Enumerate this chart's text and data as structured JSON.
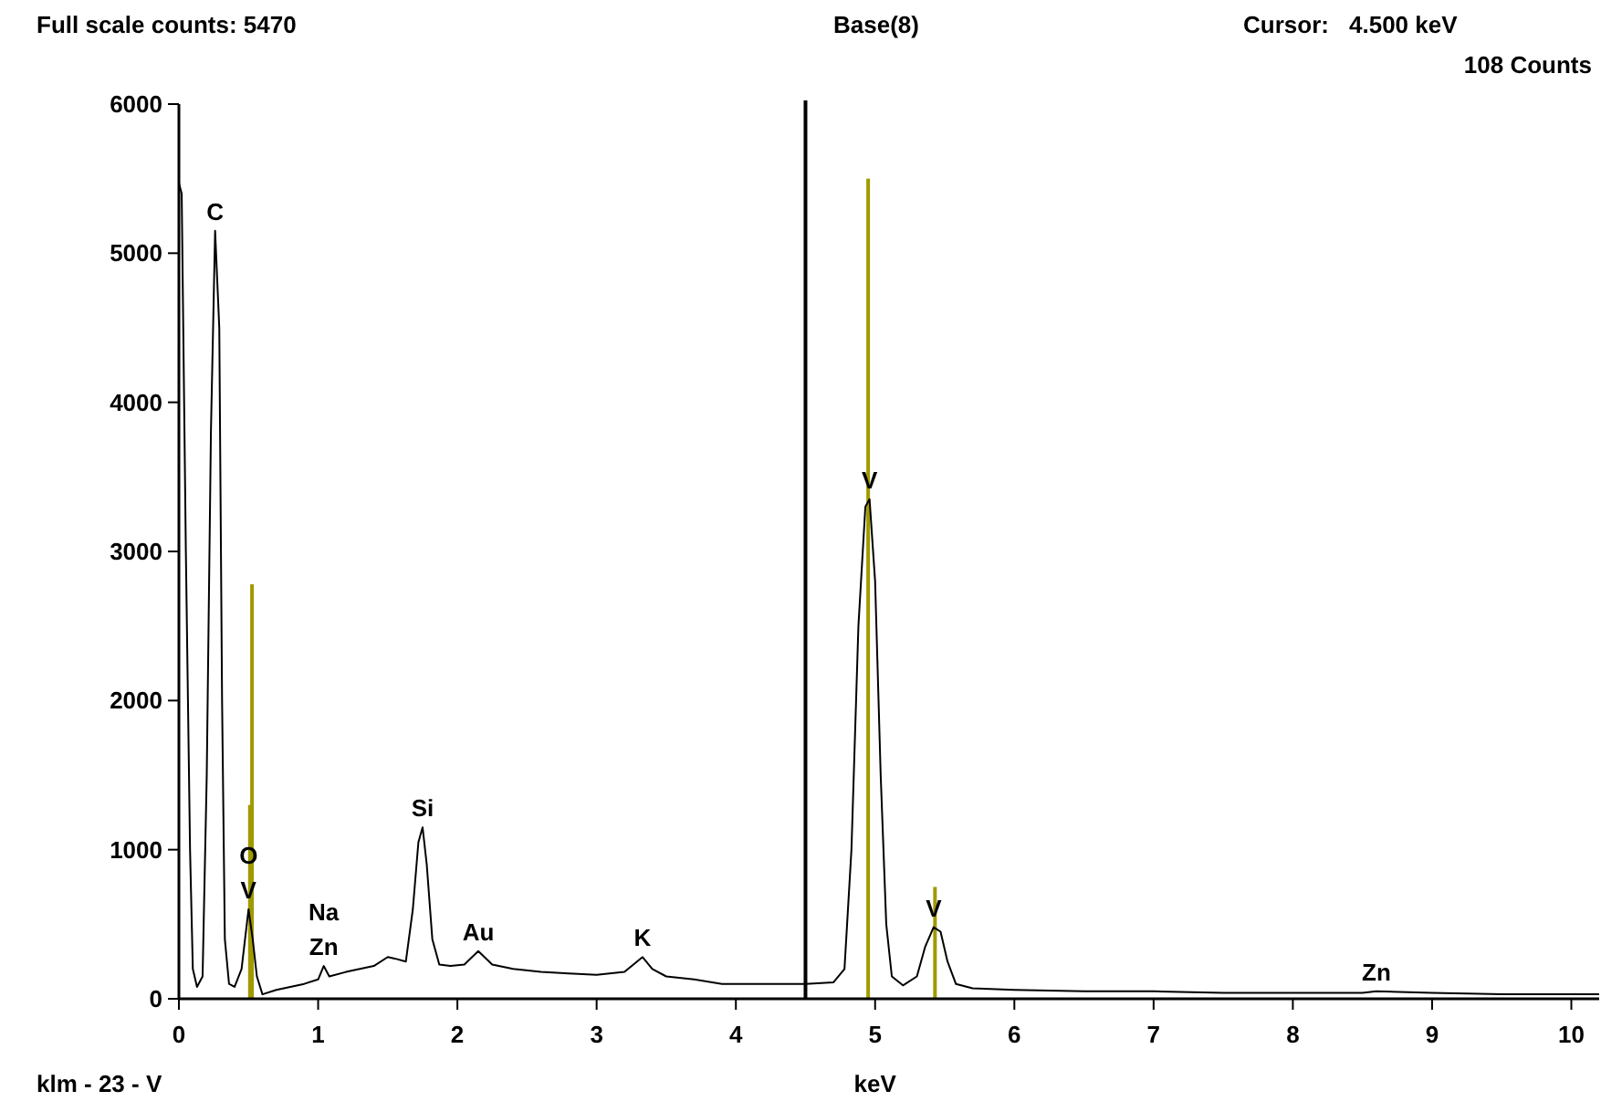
{
  "chart_data": {
    "type": "line",
    "title": "Base(8)",
    "xlabel": "keV",
    "xlim": [
      0,
      10.2
    ],
    "ylim": [
      0,
      6000
    ],
    "xticks": [
      0,
      1,
      2,
      3,
      4,
      5,
      6,
      7,
      8,
      9,
      10
    ],
    "yticks": [
      0,
      1000,
      2000,
      3000,
      4000,
      5000,
      6000
    ],
    "grid": false,
    "marker": "none",
    "line_style": "solid",
    "series": [
      {
        "color": "#000000",
        "x": [
          0,
          0.02,
          0.05,
          0.08,
          0.1,
          0.13,
          0.17,
          0.2,
          0.23,
          0.26,
          0.29,
          0.31,
          0.33,
          0.36,
          0.4,
          0.45,
          0.5,
          0.53,
          0.56,
          0.6,
          0.7,
          0.8,
          0.9,
          1.0,
          1.04,
          1.08,
          1.2,
          1.3,
          1.4,
          1.5,
          1.55,
          1.63,
          1.68,
          1.72,
          1.75,
          1.78,
          1.82,
          1.87,
          1.95,
          2.05,
          2.15,
          2.25,
          2.4,
          2.6,
          2.8,
          3.0,
          3.2,
          3.33,
          3.4,
          3.5,
          3.7,
          3.9,
          4.2,
          4.5,
          4.7,
          4.78,
          4.83,
          4.88,
          4.93,
          4.96,
          5.0,
          5.04,
          5.08,
          5.12,
          5.2,
          5.3,
          5.36,
          5.42,
          5.47,
          5.52,
          5.58,
          5.7,
          6,
          6.5,
          7,
          7.5,
          8,
          8.5,
          8.6,
          9,
          9.5,
          10,
          10.2
        ],
        "values": [
          5470,
          5400,
          3000,
          1000,
          200,
          80,
          150,
          1500,
          3800,
          5150,
          4500,
          2000,
          400,
          100,
          80,
          200,
          600,
          400,
          150,
          30,
          60,
          80,
          100,
          130,
          220,
          150,
          180,
          200,
          220,
          280,
          270,
          250,
          600,
          1050,
          1150,
          900,
          400,
          230,
          220,
          230,
          320,
          230,
          200,
          180,
          170,
          160,
          180,
          280,
          200,
          150,
          130,
          100,
          100,
          100,
          110,
          200,
          1000,
          2500,
          3300,
          3350,
          2800,
          1500,
          500,
          150,
          90,
          150,
          350,
          480,
          450,
          250,
          100,
          70,
          60,
          50,
          50,
          40,
          40,
          40,
          50,
          40,
          30,
          30,
          30
        ]
      },
      {
        "type": "bar",
        "color": "#a09a00",
        "x": [
          0.51,
          0.525,
          4.95,
          5.43
        ],
        "values": [
          1300,
          2780,
          5500,
          750
        ]
      }
    ],
    "ref_lines": [
      {
        "axis": "x",
        "value": 4.5,
        "color": "#000000"
      }
    ],
    "annotations": [
      "Full scale counts: 5470",
      "Cursor:",
      "4.500 keV",
      "108 Counts",
      "klm - 23 - V",
      {
        "text": "C",
        "x": 0.26,
        "y": 5150
      },
      {
        "text": "O",
        "x": 0.5,
        "y": 600
      },
      {
        "text": "V",
        "x": 0.5,
        "y": 600
      },
      {
        "text": "Na",
        "x": 1.04,
        "y": 220
      },
      {
        "text": "Zn",
        "x": 1.04,
        "y": 220
      },
      {
        "text": "Si",
        "x": 1.75,
        "y": 1150
      },
      {
        "text": "Au",
        "x": 2.15,
        "y": 320
      },
      {
        "text": "K",
        "x": 3.33,
        "y": 280
      },
      {
        "text": "V",
        "x": 4.96,
        "y": 3350
      },
      {
        "text": "V",
        "x": 5.42,
        "y": 480
      },
      {
        "text": "Zn",
        "x": 8.6,
        "y": 50
      }
    ]
  }
}
